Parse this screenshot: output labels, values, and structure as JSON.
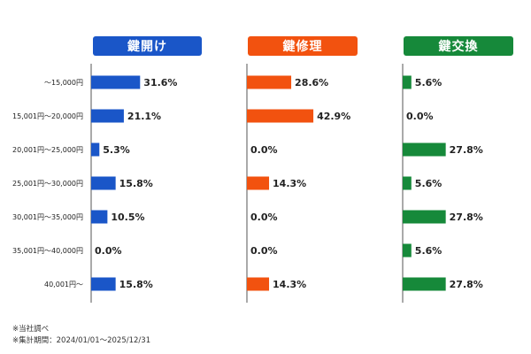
{
  "chart_data": {
    "type": "bar",
    "orientation": "horizontal",
    "categories": [
      "～15,000円",
      "15,001円～20,000円",
      "20,001円～25,000円",
      "25,001円～30,000円",
      "30,001円～35,000円",
      "35,001円～40,000円",
      "40,001円～"
    ],
    "panels": [
      {
        "title": "鍵開け",
        "color": "#1a56c8",
        "values": [
          31.6,
          21.1,
          5.3,
          15.8,
          10.5,
          0.0,
          15.8
        ],
        "labels": [
          "31.6%",
          "21.1%",
          "5.3%",
          "15.8%",
          "10.5%",
          "0.0%",
          "15.8%"
        ]
      },
      {
        "title": "鍵修理",
        "color": "#f2520f",
        "values": [
          28.6,
          42.9,
          0.0,
          14.3,
          0.0,
          0.0,
          14.3
        ],
        "labels": [
          "28.6%",
          "42.9%",
          "0.0%",
          "14.3%",
          "0.0%",
          "0.0%",
          "14.3%"
        ]
      },
      {
        "title": "鍵交換",
        "color": "#16893a",
        "values": [
          5.6,
          0.0,
          27.8,
          5.6,
          27.8,
          5.6,
          27.8
        ],
        "labels": [
          "5.6%",
          "0.0%",
          "27.8%",
          "5.6%",
          "27.8%",
          "5.6%",
          "27.8%"
        ]
      }
    ],
    "value_unit": "%",
    "legend": "none",
    "grid": false
  },
  "footnotes": {
    "note1": "※当社調べ",
    "note2": "※集計期間：2024/01/01～2025/12/31"
  },
  "colors": {
    "axis": "#555555",
    "text": "#222222"
  }
}
